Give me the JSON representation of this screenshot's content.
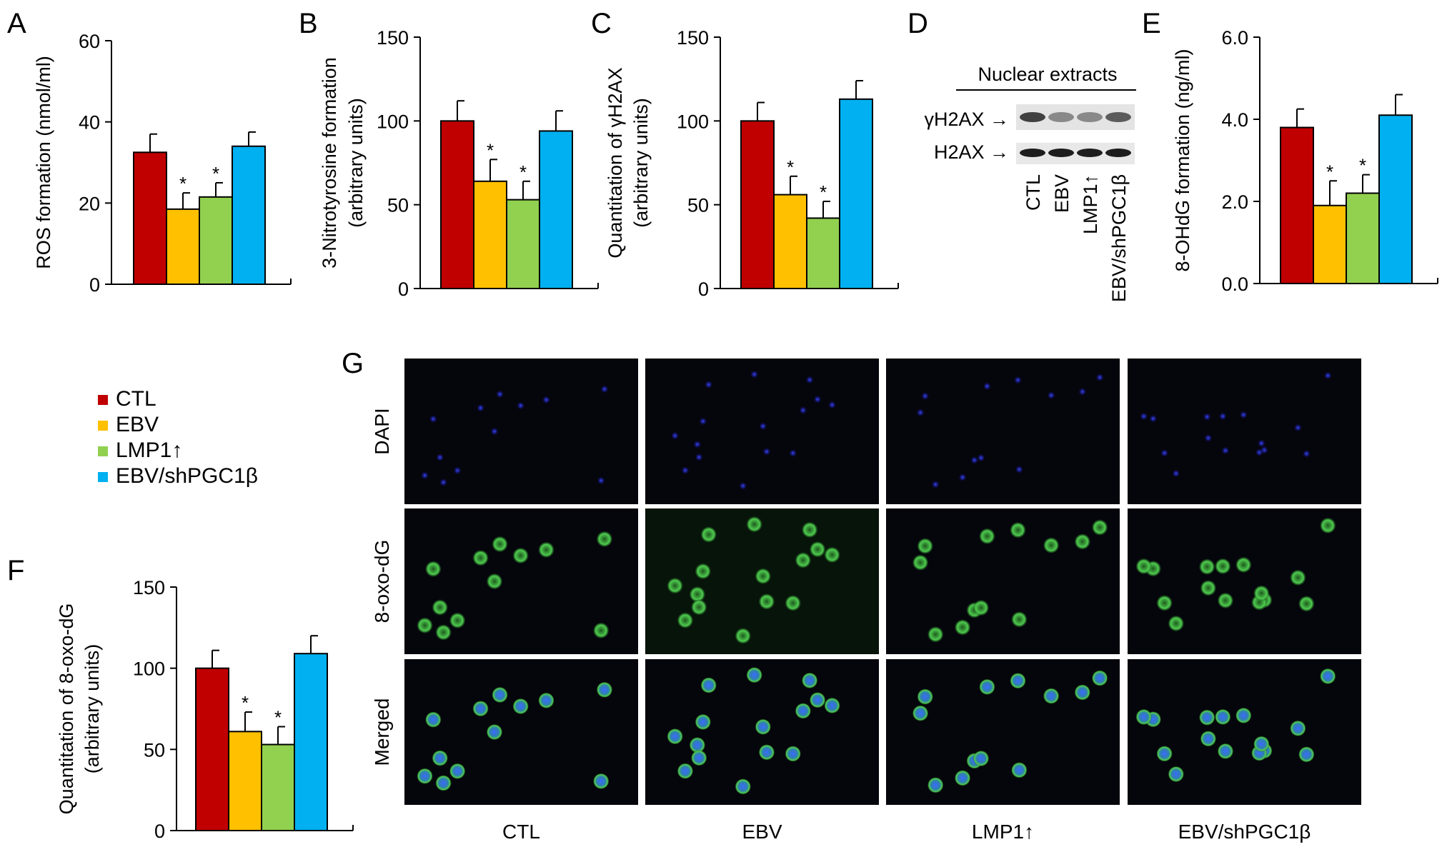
{
  "legend": {
    "items": [
      {
        "label": "CTL",
        "color": "#c00000"
      },
      {
        "label": "EBV",
        "color": "#ffc000"
      },
      {
        "label": "LMP1↑",
        "color": "#92d050"
      },
      {
        "label": "EBV/shPGC1β",
        "color": "#00b0f0"
      }
    ]
  },
  "chart_data": [
    {
      "panel": "A",
      "type": "bar",
      "categories": [
        "CTL",
        "EBV",
        "LMP1↑",
        "EBV/shPGC1β"
      ],
      "values": [
        32.5,
        18.5,
        21.5,
        34
      ],
      "errors": [
        4.5,
        4,
        3.5,
        3.5
      ],
      "significant": [
        false,
        true,
        true,
        false
      ],
      "ylabel": "ROS formation (nmol/ml)",
      "ylim": [
        0,
        60
      ],
      "yticks": [
        "0",
        "20",
        "40",
        "60"
      ]
    },
    {
      "panel": "B",
      "type": "bar",
      "categories": [
        "CTL",
        "EBV",
        "LMP1↑",
        "EBV/shPGC1β"
      ],
      "values": [
        100,
        64,
        53,
        94
      ],
      "errors": [
        12,
        13,
        11,
        12
      ],
      "significant": [
        false,
        true,
        true,
        false
      ],
      "ylabel_lines": [
        "3-Nitrotyrosine formation",
        "(arbitrary units)"
      ],
      "ylim": [
        0,
        150
      ],
      "yticks": [
        "0",
        "50",
        "100",
        "150"
      ]
    },
    {
      "panel": "C",
      "type": "bar",
      "categories": [
        "CTL",
        "EBV",
        "LMP1↑",
        "EBV/shPGC1β"
      ],
      "values": [
        100,
        56,
        42,
        113
      ],
      "errors": [
        11,
        11,
        10,
        11
      ],
      "significant": [
        false,
        true,
        true,
        false
      ],
      "ylabel_lines": [
        "Quantitation of γH2AX",
        "(arbitrary units)"
      ],
      "ylim": [
        0,
        150
      ],
      "yticks": [
        "0",
        "50",
        "100",
        "150"
      ]
    },
    {
      "panel": "E",
      "type": "bar",
      "categories": [
        "CTL",
        "EBV",
        "LMP1↑",
        "EBV/shPGC1β"
      ],
      "values": [
        3.8,
        1.9,
        2.2,
        4.1
      ],
      "errors": [
        0.45,
        0.6,
        0.45,
        0.5
      ],
      "significant": [
        false,
        true,
        true,
        false
      ],
      "ylabel": "8-OHdG formation (ng/ml)",
      "ylim": [
        0,
        6
      ],
      "yticks": [
        "0.0",
        "2.0",
        "4.0",
        "6.0"
      ]
    },
    {
      "panel": "F",
      "type": "bar",
      "categories": [
        "CTL",
        "EBV",
        "LMP1↑",
        "EBV/shPGC1β"
      ],
      "values": [
        100,
        61,
        53,
        109
      ],
      "errors": [
        11,
        12,
        11,
        11
      ],
      "significant": [
        false,
        true,
        true,
        false
      ],
      "ylabel_lines": [
        "Quantitation of 8-oxo-dG",
        "(arbitrary units)"
      ],
      "ylim": [
        0,
        150
      ],
      "yticks": [
        "0",
        "50",
        "100",
        "150"
      ]
    }
  ],
  "star_symbol": "*",
  "blot": {
    "panel": "D",
    "title": "Nuclear extracts",
    "bands": [
      {
        "label": "γH2AX →",
        "intensities": [
          0.75,
          0.35,
          0.35,
          0.6
        ]
      },
      {
        "label": "H2AX →",
        "intensities": [
          0.95,
          0.95,
          0.95,
          0.95
        ]
      }
    ],
    "lanes": [
      "CTL",
      "EBV",
      "LMP1↑",
      "EBV/shPGC1β"
    ]
  },
  "microscopy": {
    "panel": "G",
    "rows": [
      {
        "label": "DAPI",
        "stain": "blue"
      },
      {
        "label": "8-oxo-dG",
        "stain": "green"
      },
      {
        "label": "Merged",
        "stain": "merged"
      }
    ],
    "columns": [
      "CTL",
      "EBV",
      "LMP1↑",
      "EBV/shPGC1β"
    ]
  }
}
